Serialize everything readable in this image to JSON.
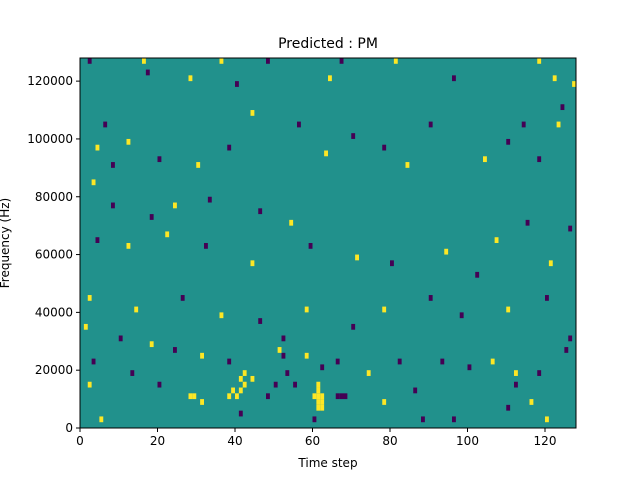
{
  "chart_data": {
    "type": "heatmap",
    "title": "Predicted : PM",
    "xlabel": "Time step",
    "ylabel": "Frequency (Hz)",
    "xlim": [
      0,
      128
    ],
    "ylim": [
      0,
      128000
    ],
    "x_ticks": [
      0,
      20,
      40,
      60,
      80,
      100,
      120
    ],
    "y_ticks": [
      0,
      20000,
      40000,
      60000,
      80000,
      100000,
      120000
    ],
    "grid": false,
    "legend": "none",
    "colormap": "viridis",
    "value_levels": [
      -1,
      0,
      1
    ],
    "colors": {
      "background": "#21918c",
      "low": "#440154",
      "high": "#fde725",
      "axis": "#000000"
    },
    "cell_size_hz": 2000,
    "sparse_cells": [
      {
        "t": 40,
        "f": 10000,
        "v": 1
      },
      {
        "t": 41,
        "f": 12000,
        "v": 1
      },
      {
        "t": 42,
        "f": 14000,
        "v": 1
      },
      {
        "t": 39,
        "f": 12000,
        "v": 1
      },
      {
        "t": 38,
        "f": 10000,
        "v": 1
      },
      {
        "t": 41,
        "f": 16000,
        "v": 1
      },
      {
        "t": 42,
        "f": 18000,
        "v": 1
      },
      {
        "t": 44,
        "f": 16000,
        "v": 1
      },
      {
        "t": 61,
        "f": 6000,
        "v": 1
      },
      {
        "t": 61,
        "f": 8000,
        "v": 1
      },
      {
        "t": 61,
        "f": 10000,
        "v": 1
      },
      {
        "t": 61,
        "f": 12000,
        "v": 1
      },
      {
        "t": 61,
        "f": 14000,
        "v": 1
      },
      {
        "t": 62,
        "f": 6000,
        "v": 1
      },
      {
        "t": 62,
        "f": 8000,
        "v": 1
      },
      {
        "t": 62,
        "f": 10000,
        "v": 1
      },
      {
        "t": 60,
        "f": 10000,
        "v": 1
      },
      {
        "t": 67,
        "f": 10000,
        "v": -1
      },
      {
        "t": 68,
        "f": 10000,
        "v": -1
      },
      {
        "t": 66,
        "f": 10000,
        "v": -1
      },
      {
        "t": 62,
        "f": 20000,
        "v": -1
      },
      {
        "t": 52,
        "f": 24000,
        "v": -1
      },
      {
        "t": 50,
        "f": 14000,
        "v": -1
      },
      {
        "t": 48,
        "f": 10000,
        "v": -1
      },
      {
        "t": 53,
        "f": 18000,
        "v": -1
      },
      {
        "t": 52,
        "f": 30000,
        "v": -1
      },
      {
        "t": 55,
        "f": 14000,
        "v": -1
      },
      {
        "t": 13,
        "f": 18000,
        "v": -1
      },
      {
        "t": 28,
        "f": 10000,
        "v": 1
      },
      {
        "t": 29,
        "f": 10000,
        "v": 1
      },
      {
        "t": 106,
        "f": 22000,
        "v": 1
      },
      {
        "t": 112,
        "f": 18000,
        "v": 1
      },
      {
        "t": 120,
        "f": 2000,
        "v": 1
      },
      {
        "t": 96,
        "f": 2000,
        "v": -1
      },
      {
        "t": 88,
        "f": 2000,
        "v": -1
      },
      {
        "t": 60,
        "f": 2000,
        "v": -1
      },
      {
        "t": 5,
        "f": 2000,
        "v": 1
      },
      {
        "t": 2,
        "f": 14000,
        "v": 1
      },
      {
        "t": 3,
        "f": 22000,
        "v": -1
      },
      {
        "t": 1,
        "f": 34000,
        "v": 1
      },
      {
        "t": 2,
        "f": 44000,
        "v": 1
      },
      {
        "t": 4,
        "f": 64000,
        "v": -1
      },
      {
        "t": 3,
        "f": 84000,
        "v": 1
      },
      {
        "t": 4,
        "f": 96000,
        "v": 1
      },
      {
        "t": 6,
        "f": 104000,
        "v": -1
      },
      {
        "t": 2,
        "f": 126000,
        "v": -1
      },
      {
        "t": 16,
        "f": 126000,
        "v": 1
      },
      {
        "t": 17,
        "f": 122000,
        "v": -1
      },
      {
        "t": 28,
        "f": 120000,
        "v": 1
      },
      {
        "t": 36,
        "f": 126000,
        "v": 1
      },
      {
        "t": 40,
        "f": 118000,
        "v": -1
      },
      {
        "t": 48,
        "f": 126000,
        "v": -1
      },
      {
        "t": 64,
        "f": 120000,
        "v": 1
      },
      {
        "t": 67,
        "f": 126000,
        "v": -1
      },
      {
        "t": 81,
        "f": 126000,
        "v": 1
      },
      {
        "t": 96,
        "f": 120000,
        "v": -1
      },
      {
        "t": 118,
        "f": 126000,
        "v": 1
      },
      {
        "t": 122,
        "f": 120000,
        "v": 1
      },
      {
        "t": 127,
        "f": 118000,
        "v": 1
      },
      {
        "t": 123,
        "f": 104000,
        "v": 1
      },
      {
        "t": 114,
        "f": 104000,
        "v": -1
      },
      {
        "t": 110,
        "f": 98000,
        "v": -1
      },
      {
        "t": 104,
        "f": 92000,
        "v": 1
      },
      {
        "t": 118,
        "f": 92000,
        "v": -1
      },
      {
        "t": 124,
        "f": 110000,
        "v": -1
      },
      {
        "t": 90,
        "f": 104000,
        "v": -1
      },
      {
        "t": 84,
        "f": 90000,
        "v": 1
      },
      {
        "t": 78,
        "f": 96000,
        "v": -1
      },
      {
        "t": 70,
        "f": 100000,
        "v": -1
      },
      {
        "t": 63,
        "f": 94000,
        "v": 1
      },
      {
        "t": 56,
        "f": 104000,
        "v": -1
      },
      {
        "t": 44,
        "f": 108000,
        "v": 1
      },
      {
        "t": 38,
        "f": 96000,
        "v": -1
      },
      {
        "t": 30,
        "f": 90000,
        "v": 1
      },
      {
        "t": 20,
        "f": 92000,
        "v": -1
      },
      {
        "t": 12,
        "f": 98000,
        "v": 1
      },
      {
        "t": 8,
        "f": 90000,
        "v": -1
      },
      {
        "t": 18,
        "f": 72000,
        "v": -1
      },
      {
        "t": 24,
        "f": 76000,
        "v": 1
      },
      {
        "t": 33,
        "f": 78000,
        "v": -1
      },
      {
        "t": 46,
        "f": 74000,
        "v": -1
      },
      {
        "t": 54,
        "f": 70000,
        "v": 1
      },
      {
        "t": 59,
        "f": 62000,
        "v": -1
      },
      {
        "t": 71,
        "f": 58000,
        "v": 1
      },
      {
        "t": 80,
        "f": 56000,
        "v": -1
      },
      {
        "t": 94,
        "f": 60000,
        "v": 1
      },
      {
        "t": 102,
        "f": 52000,
        "v": -1
      },
      {
        "t": 107,
        "f": 64000,
        "v": 1
      },
      {
        "t": 115,
        "f": 70000,
        "v": -1
      },
      {
        "t": 121,
        "f": 56000,
        "v": 1
      },
      {
        "t": 126,
        "f": 68000,
        "v": -1
      },
      {
        "t": 120,
        "f": 44000,
        "v": -1
      },
      {
        "t": 110,
        "f": 40000,
        "v": 1
      },
      {
        "t": 98,
        "f": 38000,
        "v": -1
      },
      {
        "t": 90,
        "f": 44000,
        "v": -1
      },
      {
        "t": 78,
        "f": 40000,
        "v": 1
      },
      {
        "t": 70,
        "f": 34000,
        "v": -1
      },
      {
        "t": 58,
        "f": 40000,
        "v": 1
      },
      {
        "t": 46,
        "f": 36000,
        "v": -1
      },
      {
        "t": 36,
        "f": 38000,
        "v": 1
      },
      {
        "t": 26,
        "f": 44000,
        "v": -1
      },
      {
        "t": 14,
        "f": 40000,
        "v": 1
      },
      {
        "t": 10,
        "f": 30000,
        "v": -1
      },
      {
        "t": 18,
        "f": 28000,
        "v": 1
      },
      {
        "t": 24,
        "f": 26000,
        "v": -1
      },
      {
        "t": 31,
        "f": 24000,
        "v": 1
      },
      {
        "t": 38,
        "f": 22000,
        "v": -1
      },
      {
        "t": 51,
        "f": 26000,
        "v": 1
      },
      {
        "t": 58,
        "f": 24000,
        "v": 1
      },
      {
        "t": 66,
        "f": 22000,
        "v": -1
      },
      {
        "t": 74,
        "f": 18000,
        "v": 1
      },
      {
        "t": 82,
        "f": 22000,
        "v": -1
      },
      {
        "t": 93,
        "f": 22000,
        "v": -1
      },
      {
        "t": 100,
        "f": 20000,
        "v": -1
      },
      {
        "t": 112,
        "f": 14000,
        "v": -1
      },
      {
        "t": 118,
        "f": 18000,
        "v": -1
      },
      {
        "t": 125,
        "f": 26000,
        "v": -1
      },
      {
        "t": 126,
        "f": 30000,
        "v": -1
      },
      {
        "t": 20,
        "f": 14000,
        "v": -1
      },
      {
        "t": 31,
        "f": 8000,
        "v": 1
      },
      {
        "t": 41,
        "f": 4000,
        "v": -1
      },
      {
        "t": 78,
        "f": 8000,
        "v": 1
      },
      {
        "t": 86,
        "f": 12000,
        "v": -1
      },
      {
        "t": 110,
        "f": 6000,
        "v": -1
      },
      {
        "t": 116,
        "f": 8000,
        "v": 1
      },
      {
        "t": 44,
        "f": 56000,
        "v": 1
      },
      {
        "t": 32,
        "f": 62000,
        "v": -1
      },
      {
        "t": 22,
        "f": 66000,
        "v": 1
      },
      {
        "t": 12,
        "f": 62000,
        "v": 1
      },
      {
        "t": 8,
        "f": 76000,
        "v": -1
      }
    ]
  }
}
